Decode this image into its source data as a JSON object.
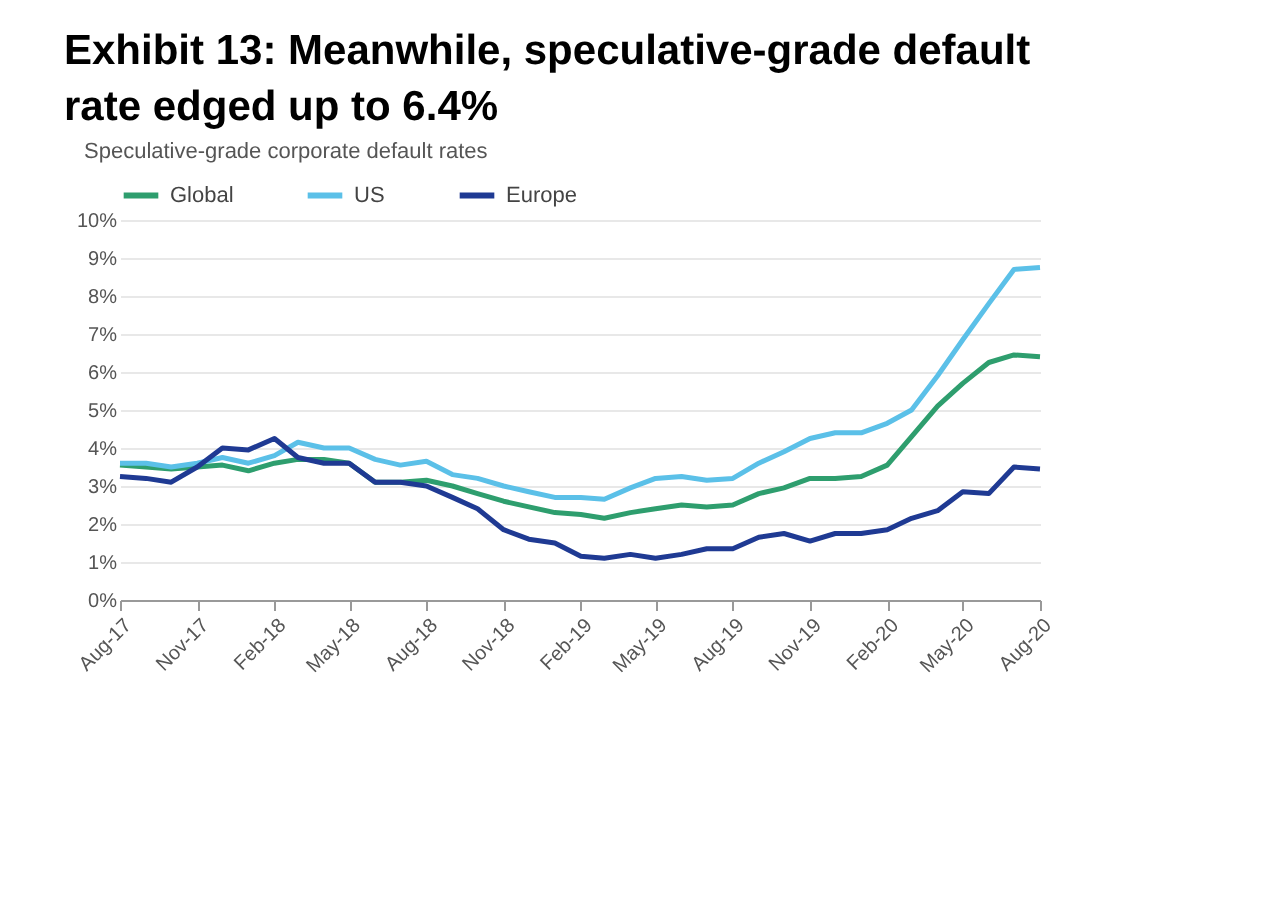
{
  "chart_data": {
    "type": "line",
    "title": "Exhibit 13: Meanwhile, speculative-grade default rate edged up to 6.4%",
    "subtitle": "Speculative-grade corporate default rates",
    "x": [
      "2017-08",
      "2017-09",
      "2017-10",
      "2017-11",
      "2017-12",
      "2018-01",
      "2018-02",
      "2018-03",
      "2018-04",
      "2018-05",
      "2018-06",
      "2018-07",
      "2018-08",
      "2018-09",
      "2018-10",
      "2018-11",
      "2018-12",
      "2019-01",
      "2019-02",
      "2019-03",
      "2019-04",
      "2019-05",
      "2019-06",
      "2019-07",
      "2019-08",
      "2019-09",
      "2019-10",
      "2019-11",
      "2019-12",
      "2020-01",
      "2020-02",
      "2020-03",
      "2020-04",
      "2020-05",
      "2020-06",
      "2020-07",
      "2020-08"
    ],
    "series": [
      {
        "name": "Global",
        "color": "#2e9e6e",
        "values": [
          3.55,
          3.5,
          3.45,
          3.5,
          3.55,
          3.4,
          3.6,
          3.7,
          3.7,
          3.6,
          3.1,
          3.1,
          3.15,
          3.0,
          2.8,
          2.6,
          2.45,
          2.3,
          2.25,
          2.15,
          2.3,
          2.4,
          2.5,
          2.45,
          2.5,
          2.8,
          2.95,
          3.2,
          3.2,
          3.25,
          3.55,
          4.3,
          5.1,
          5.7,
          6.25,
          6.45,
          6.4
        ]
      },
      {
        "name": "US",
        "color": "#5bc0e8",
        "values": [
          3.6,
          3.6,
          3.5,
          3.6,
          3.75,
          3.6,
          3.8,
          4.15,
          4.0,
          4.0,
          3.7,
          3.55,
          3.65,
          3.3,
          3.2,
          3.0,
          2.85,
          2.7,
          2.7,
          2.65,
          2.95,
          3.2,
          3.25,
          3.15,
          3.2,
          3.6,
          3.9,
          4.25,
          4.4,
          4.4,
          4.65,
          5.0,
          5.9,
          6.85,
          7.8,
          8.7,
          8.75
        ]
      },
      {
        "name": "Europe",
        "color": "#1f3a93",
        "values": [
          3.25,
          3.2,
          3.1,
          3.5,
          4.0,
          3.95,
          4.25,
          3.75,
          3.6,
          3.6,
          3.1,
          3.1,
          3.0,
          2.7,
          2.4,
          1.85,
          1.6,
          1.5,
          1.15,
          1.1,
          1.2,
          1.1,
          1.2,
          1.35,
          1.35,
          1.65,
          1.75,
          1.55,
          1.75,
          1.75,
          1.85,
          2.15,
          2.35,
          2.85,
          2.8,
          3.5,
          3.45
        ]
      }
    ],
    "xlim": [
      "2017-08",
      "2020-08"
    ],
    "xticks": [
      {
        "value": "2017-08",
        "label": "Aug-17"
      },
      {
        "value": "2017-11",
        "label": "Nov-17"
      },
      {
        "value": "2018-02",
        "label": "Feb-18"
      },
      {
        "value": "2018-05",
        "label": "May-18"
      },
      {
        "value": "2018-08",
        "label": "Aug-18"
      },
      {
        "value": "2018-11",
        "label": "Nov-18"
      },
      {
        "value": "2019-02",
        "label": "Feb-19"
      },
      {
        "value": "2019-05",
        "label": "May-19"
      },
      {
        "value": "2019-08",
        "label": "Aug-19"
      },
      {
        "value": "2019-11",
        "label": "Nov-19"
      },
      {
        "value": "2020-02",
        "label": "Feb-20"
      },
      {
        "value": "2020-05",
        "label": "May-20"
      },
      {
        "value": "2020-08",
        "label": "Aug-20"
      }
    ],
    "ylim": [
      0,
      10
    ],
    "yticks": [
      {
        "value": 0,
        "label": "0%"
      },
      {
        "value": 1,
        "label": "1%"
      },
      {
        "value": 2,
        "label": "2%"
      },
      {
        "value": 3,
        "label": "3%"
      },
      {
        "value": 4,
        "label": "4%"
      },
      {
        "value": 5,
        "label": "5%"
      },
      {
        "value": 6,
        "label": "6%"
      },
      {
        "value": 7,
        "label": "7%"
      },
      {
        "value": 8,
        "label": "8%"
      },
      {
        "value": 9,
        "label": "9%"
      },
      {
        "value": 10,
        "label": "10%"
      }
    ],
    "grid": "y",
    "legend": "top",
    "marker": "none",
    "line_style": "solid"
  }
}
